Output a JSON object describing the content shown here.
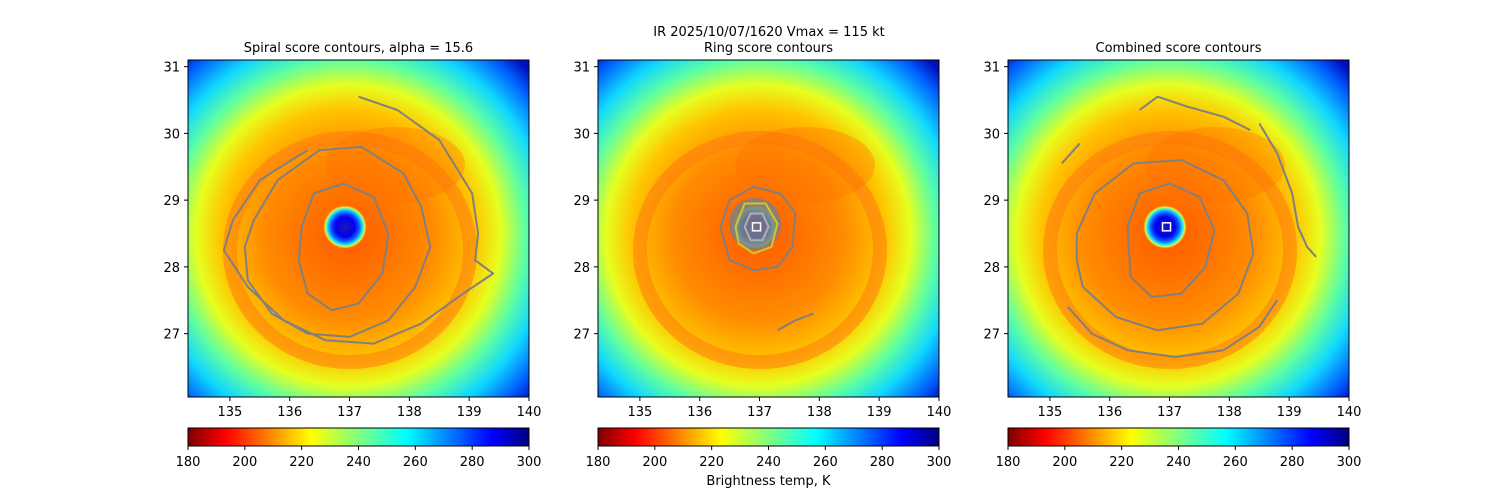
{
  "figure": {
    "title_line1": "IR  2025/10/07/1620    Vmax = 115 kt",
    "colorbar_label": "Brightness temp, K"
  },
  "chart_data": [
    {
      "type": "heatmap",
      "title": "Spiral score contours, alpha = 15.6",
      "xlabel": "",
      "ylabel": "",
      "xlim": [
        134.3,
        140.0
      ],
      "ylim": [
        26.05,
        31.1
      ],
      "xticks": [
        135,
        136,
        137,
        138,
        139,
        140
      ],
      "yticks": [
        27,
        28,
        29,
        30,
        31
      ],
      "center": [
        136.95,
        28.6
      ],
      "colorbar": {
        "min": 180,
        "max": 300,
        "ticks": [
          180,
          200,
          220,
          240,
          260,
          280,
          300
        ],
        "cmap": "jet_r"
      },
      "contours": [
        {
          "level": "inner",
          "color": "#808080",
          "points": [
            [
              136.2,
              28.6
            ],
            [
              136.4,
              29.1
            ],
            [
              136.9,
              29.25
            ],
            [
              137.4,
              29.05
            ],
            [
              137.65,
              28.5
            ],
            [
              137.55,
              27.9
            ],
            [
              137.15,
              27.45
            ],
            [
              136.7,
              27.35
            ],
            [
              136.3,
              27.6
            ],
            [
              136.15,
              28.1
            ],
            [
              136.2,
              28.6
            ]
          ]
        },
        {
          "level": "middle",
          "color": "#808080",
          "points": [
            [
              135.4,
              28.7
            ],
            [
              135.8,
              29.3
            ],
            [
              136.5,
              29.75
            ],
            [
              137.2,
              29.8
            ],
            [
              137.9,
              29.4
            ],
            [
              138.2,
              28.9
            ],
            [
              138.35,
              28.3
            ],
            [
              138.1,
              27.7
            ],
            [
              137.65,
              27.2
            ],
            [
              137.0,
              26.95
            ],
            [
              136.3,
              27.0
            ],
            [
              135.7,
              27.3
            ],
            [
              135.3,
              27.8
            ],
            [
              135.25,
              28.3
            ],
            [
              135.4,
              28.7
            ]
          ]
        },
        {
          "level": "outer",
          "color": "#808080",
          "points": [
            [
              137.15,
              30.55
            ],
            [
              137.8,
              30.35
            ],
            [
              138.5,
              29.9
            ],
            [
              139.05,
              29.1
            ],
            [
              139.15,
              28.5
            ],
            [
              139.1,
              28.1
            ],
            [
              139.4,
              27.9
            ],
            [
              138.9,
              27.6
            ],
            [
              138.2,
              27.15
            ],
            [
              137.4,
              26.85
            ],
            [
              136.6,
              26.9
            ],
            [
              135.9,
              27.2
            ],
            [
              135.3,
              27.7
            ],
            [
              134.9,
              28.25
            ],
            [
              135.05,
              28.7
            ],
            [
              135.5,
              29.3
            ],
            [
              136.3,
              29.75
            ]
          ]
        }
      ],
      "markers": []
    },
    {
      "type": "heatmap",
      "title": "Ring score contours",
      "xlabel": "",
      "ylabel": "",
      "xlim": [
        134.3,
        140.0
      ],
      "ylim": [
        26.05,
        31.1
      ],
      "xticks": [
        135,
        136,
        137,
        138,
        139,
        140
      ],
      "yticks": [
        27,
        28,
        29,
        30,
        31
      ],
      "center": [
        136.95,
        28.6
      ],
      "colorbar": {
        "min": 180,
        "max": 300,
        "ticks": [
          180,
          200,
          220,
          240,
          260,
          280,
          300
        ],
        "cmap": "jet_r"
      },
      "contours": [
        {
          "level": "outer",
          "color": "#808080",
          "points": [
            [
              136.35,
              28.6
            ],
            [
              136.5,
              29.0
            ],
            [
              136.9,
              29.2
            ],
            [
              137.35,
              29.1
            ],
            [
              137.6,
              28.8
            ],
            [
              137.55,
              28.3
            ],
            [
              137.3,
              28.0
            ],
            [
              136.9,
              27.95
            ],
            [
              136.5,
              28.1
            ],
            [
              136.35,
              28.6
            ]
          ]
        },
        {
          "level": "mid",
          "color": "#c8c832",
          "points": [
            [
              136.6,
              28.6
            ],
            [
              136.75,
              28.95
            ],
            [
              137.1,
              28.95
            ],
            [
              137.3,
              28.65
            ],
            [
              137.2,
              28.3
            ],
            [
              136.9,
              28.2
            ],
            [
              136.65,
              28.35
            ],
            [
              136.6,
              28.6
            ]
          ]
        },
        {
          "level": "inner",
          "color": "#aab4aa",
          "points": [
            [
              136.75,
              28.6
            ],
            [
              136.85,
              28.8
            ],
            [
              137.05,
              28.8
            ],
            [
              137.15,
              28.6
            ],
            [
              137.05,
              28.4
            ],
            [
              136.85,
              28.4
            ],
            [
              136.75,
              28.6
            ]
          ]
        },
        {
          "level": "tail",
          "color": "#808080",
          "points": [
            [
              137.3,
              27.05
            ],
            [
              137.6,
              27.2
            ],
            [
              137.9,
              27.3
            ]
          ]
        }
      ],
      "markers": [
        [
          136.95,
          28.6
        ]
      ]
    },
    {
      "type": "heatmap",
      "title": "Combined score contours",
      "xlabel": "",
      "ylabel": "",
      "xlim": [
        134.3,
        140.0
      ],
      "ylim": [
        26.05,
        31.1
      ],
      "xticks": [
        135,
        136,
        137,
        138,
        139,
        140
      ],
      "yticks": [
        27,
        28,
        29,
        30,
        31
      ],
      "center": [
        136.95,
        28.6
      ],
      "colorbar": {
        "min": 180,
        "max": 300,
        "ticks": [
          180,
          200,
          220,
          240,
          260,
          280,
          300
        ],
        "cmap": "jet_r"
      },
      "contours": [
        {
          "level": "inner",
          "color": "#808080",
          "points": [
            [
              136.3,
              28.6
            ],
            [
              136.5,
              29.1
            ],
            [
              137.0,
              29.25
            ],
            [
              137.5,
              29.05
            ],
            [
              137.75,
              28.55
            ],
            [
              137.6,
              28.0
            ],
            [
              137.2,
              27.6
            ],
            [
              136.7,
              27.55
            ],
            [
              136.35,
              27.85
            ],
            [
              136.3,
              28.6
            ]
          ]
        },
        {
          "level": "middle",
          "color": "#808080",
          "points": [
            [
              135.45,
              28.5
            ],
            [
              135.75,
              29.1
            ],
            [
              136.4,
              29.55
            ],
            [
              137.2,
              29.6
            ],
            [
              137.9,
              29.3
            ],
            [
              138.3,
              28.8
            ],
            [
              138.4,
              28.2
            ],
            [
              138.15,
              27.6
            ],
            [
              137.55,
              27.15
            ],
            [
              136.8,
              27.05
            ],
            [
              136.1,
              27.25
            ],
            [
              135.55,
              27.7
            ],
            [
              135.45,
              28.1
            ],
            [
              135.45,
              28.5
            ]
          ]
        },
        {
          "level": "outer",
          "color": "#808080",
          "points": [
            [
              135.3,
              27.4
            ],
            [
              135.7,
              27.0
            ],
            [
              136.3,
              26.75
            ],
            [
              137.1,
              26.65
            ],
            [
              137.9,
              26.75
            ],
            [
              138.5,
              27.1
            ],
            [
              138.8,
              27.5
            ]
          ]
        },
        {
          "level": "arc-top",
          "color": "#808080",
          "points": [
            [
              136.5,
              30.35
            ],
            [
              136.8,
              30.55
            ],
            [
              137.3,
              30.4
            ],
            [
              137.9,
              30.25
            ],
            [
              138.35,
              30.05
            ]
          ]
        },
        {
          "level": "arc-right",
          "color": "#808080",
          "points": [
            [
              138.5,
              30.15
            ],
            [
              138.8,
              29.7
            ],
            [
              139.05,
              29.1
            ],
            [
              139.15,
              28.6
            ],
            [
              139.3,
              28.3
            ],
            [
              139.45,
              28.15
            ]
          ]
        },
        {
          "level": "arc-left",
          "color": "#808080",
          "points": [
            [
              135.2,
              29.55
            ],
            [
              135.35,
              29.7
            ],
            [
              135.5,
              29.85
            ]
          ]
        }
      ],
      "markers": [
        [
          136.95,
          28.6
        ]
      ]
    }
  ]
}
